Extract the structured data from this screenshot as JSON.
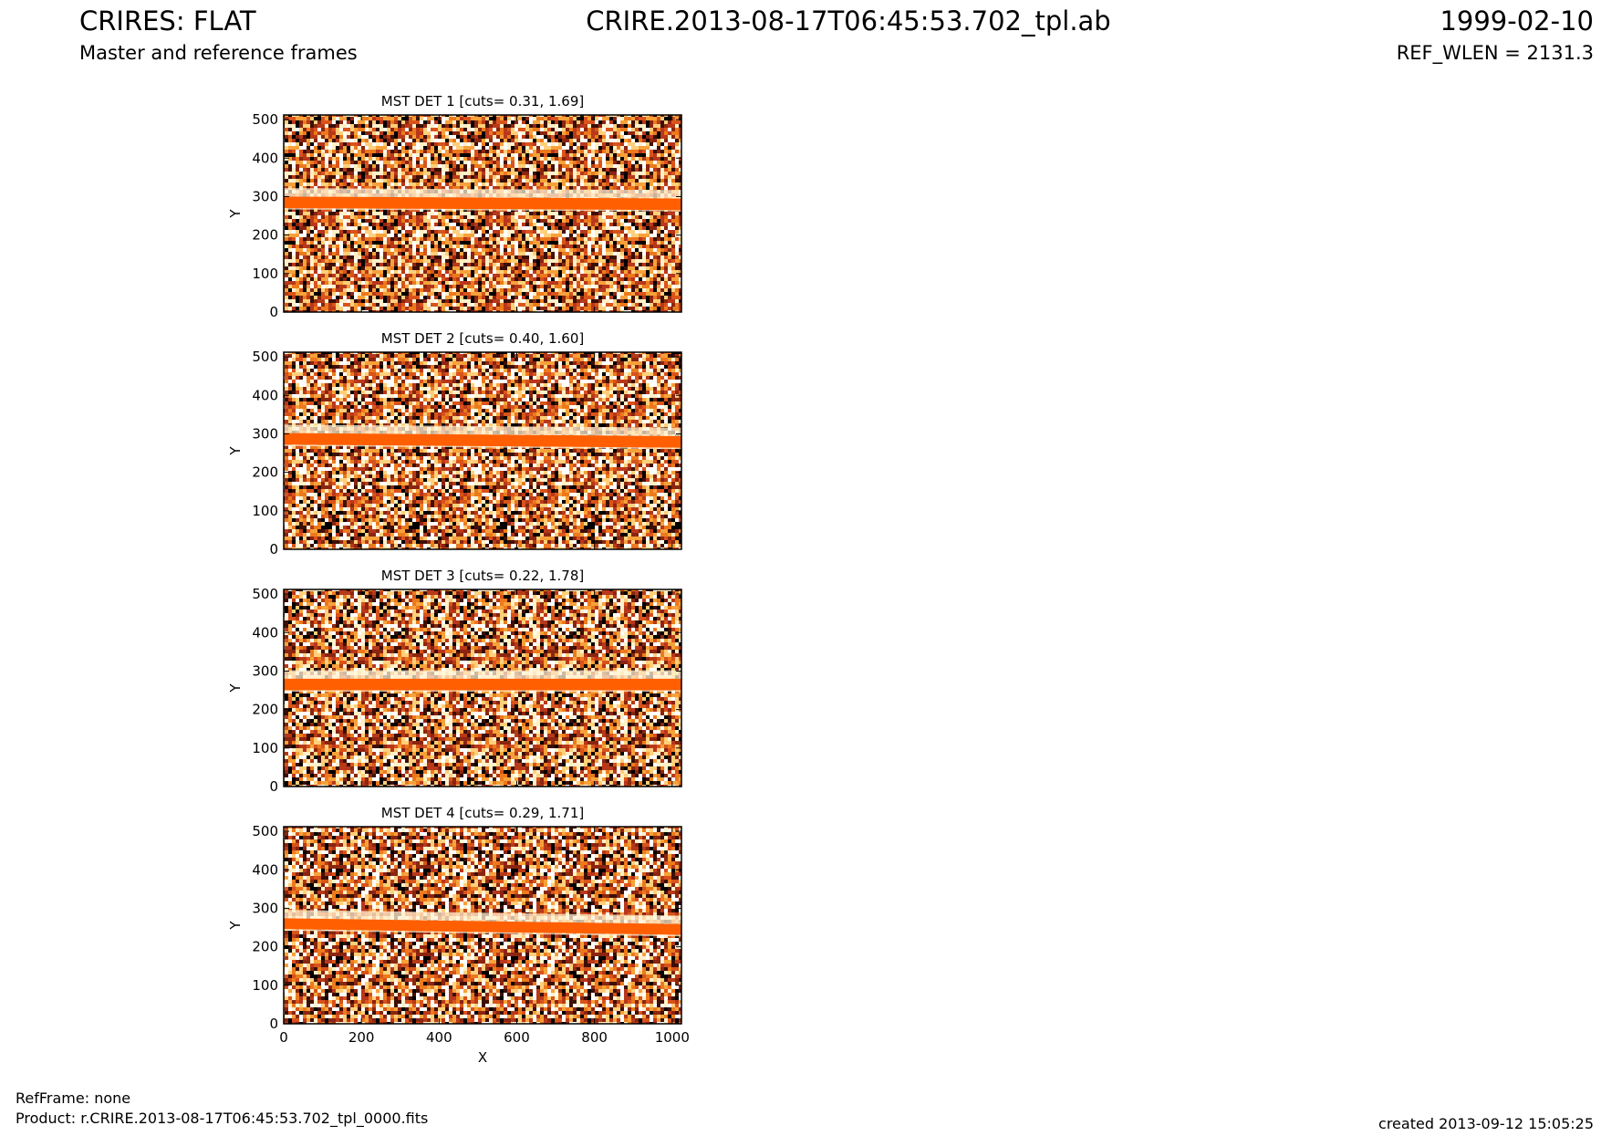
{
  "header": {
    "title_left": "CRIRES: FLAT",
    "subtitle_left": "Master and reference frames",
    "title_center": "CRIRE.2013-08-17T06:45:53.702_tpl.ab",
    "title_right": "1999-02-10",
    "subtitle_right": "REF_WLEN = 2131.3"
  },
  "footer": {
    "ref_frame": "RefFrame: none",
    "product": "Product: r.CRIRE.2013-08-17T06:45:53.702_tpl_0000.fits",
    "created": "created 2013-09-12 15:05:25"
  },
  "colors": {
    "stripe": "#ff5f00",
    "halo": "#fff3d6",
    "noise": [
      "#ffffff",
      "#fff0c8",
      "#ffcf7a",
      "#f7a13a",
      "#ec7a1c",
      "#d9531b",
      "#b8381a",
      "#8a2510",
      "#3d0f06",
      "#000000"
    ]
  },
  "chart_data": [
    {
      "type": "heatmap",
      "title": "MST DET 1 [cuts= 0.31, 1.69]",
      "ylabel": "Y",
      "xlabel": "",
      "xlim": [
        0,
        1024
      ],
      "ylim": [
        0,
        512
      ],
      "yticks": [
        0,
        100,
        200,
        300,
        400,
        500
      ],
      "xticks": [],
      "stripe_center_y": [
        285,
        280
      ],
      "stripe_half_width": 15
    },
    {
      "type": "heatmap",
      "title": "MST DET 2 [cuts= 0.40, 1.60]",
      "ylabel": "Y",
      "xlabel": "",
      "xlim": [
        0,
        1024
      ],
      "ylim": [
        0,
        512
      ],
      "yticks": [
        0,
        100,
        200,
        300,
        400,
        500
      ],
      "xticks": [],
      "stripe_center_y": [
        287,
        279
      ],
      "stripe_half_width": 15
    },
    {
      "type": "heatmap",
      "title": "MST DET 3 [cuts= 0.22, 1.78]",
      "ylabel": "Y",
      "xlabel": "",
      "xlim": [
        0,
        1024
      ],
      "ylim": [
        0,
        512
      ],
      "yticks": [
        0,
        100,
        200,
        300,
        400,
        500
      ],
      "xticks": [],
      "stripe_center_y": [
        265,
        265
      ],
      "stripe_half_width": 15
    },
    {
      "type": "heatmap",
      "title": "MST DET 4 [cuts= 0.29, 1.71]",
      "ylabel": "Y",
      "xlabel": "X",
      "xlim": [
        0,
        1024
      ],
      "ylim": [
        0,
        512
      ],
      "yticks": [
        0,
        100,
        200,
        300,
        400,
        500
      ],
      "xticks": [
        0,
        200,
        400,
        600,
        800,
        1000
      ],
      "stripe_center_y": [
        260,
        245
      ],
      "stripe_half_width": 14
    }
  ]
}
